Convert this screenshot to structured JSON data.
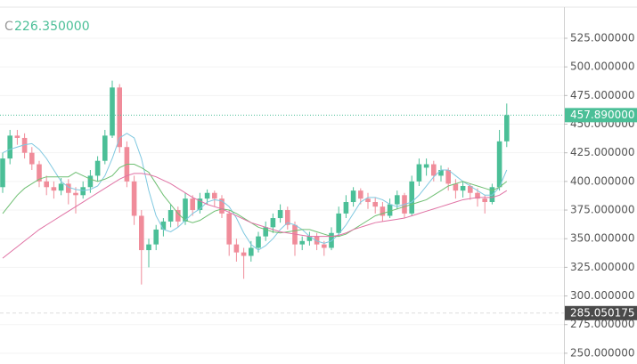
{
  "chart_data": {
    "type": "candlestick",
    "header": {
      "label": "C",
      "value": "226.350000"
    },
    "ylim": [
      240.6,
      558.4
    ],
    "yticks": [
      {
        "value": 250,
        "label": "250.000000"
      },
      {
        "value": 275,
        "label": "275.000000"
      },
      {
        "value": 300,
        "label": "300.000000"
      },
      {
        "value": 325,
        "label": "325.000000"
      },
      {
        "value": 350,
        "label": "350.000000"
      },
      {
        "value": 375,
        "label": "375.000000"
      },
      {
        "value": 400,
        "label": "400.000000"
      },
      {
        "value": 425,
        "label": "425.000000"
      },
      {
        "value": 450,
        "label": "450.000000"
      },
      {
        "value": 475,
        "label": "475.000000"
      },
      {
        "value": 500,
        "label": "500.000000"
      },
      {
        "value": 525,
        "label": "525.000000"
      }
    ],
    "last_price": {
      "value": 457.89,
      "label": "457.890000",
      "color": "#4bbf97"
    },
    "marker_line": {
      "value": 285.050175,
      "label": "285.050175",
      "color": "#4a4a4a"
    },
    "up_color": "#4bbf97",
    "down_color": "#f08c9a",
    "ohlc": [
      [
        395,
        425,
        390,
        420
      ],
      [
        420,
        445,
        415,
        440
      ],
      [
        440,
        445,
        432,
        438
      ],
      [
        438,
        442,
        420,
        425
      ],
      [
        425,
        430,
        410,
        415
      ],
      [
        415,
        418,
        395,
        400
      ],
      [
        400,
        405,
        388,
        395
      ],
      [
        395,
        400,
        385,
        392
      ],
      [
        392,
        403,
        388,
        398
      ],
      [
        398,
        402,
        380,
        390
      ],
      [
        390,
        395,
        372,
        388
      ],
      [
        388,
        400,
        385,
        395
      ],
      [
        395,
        410,
        390,
        405
      ],
      [
        405,
        422,
        400,
        418
      ],
      [
        418,
        445,
        415,
        440
      ],
      [
        440,
        488,
        438,
        482
      ],
      [
        482,
        485,
        425,
        430
      ],
      [
        430,
        435,
        395,
        400
      ],
      [
        400,
        405,
        362,
        370
      ],
      [
        370,
        375,
        310,
        340
      ],
      [
        340,
        350,
        325,
        345
      ],
      [
        345,
        362,
        340,
        358
      ],
      [
        358,
        368,
        352,
        365
      ],
      [
        365,
        380,
        360,
        375
      ],
      [
        375,
        378,
        360,
        365
      ],
      [
        365,
        390,
        362,
        385
      ],
      [
        385,
        388,
        370,
        375
      ],
      [
        375,
        390,
        372,
        385
      ],
      [
        385,
        393,
        380,
        390
      ],
      [
        390,
        392,
        378,
        385
      ],
      [
        385,
        388,
        368,
        372
      ],
      [
        372,
        375,
        335,
        345
      ],
      [
        345,
        350,
        330,
        338
      ],
      [
        338,
        342,
        315,
        335
      ],
      [
        335,
        348,
        330,
        342
      ],
      [
        342,
        356,
        338,
        352
      ],
      [
        352,
        365,
        348,
        360
      ],
      [
        360,
        372,
        355,
        368
      ],
      [
        368,
        380,
        364,
        375
      ],
      [
        375,
        378,
        358,
        362
      ],
      [
        362,
        365,
        335,
        345
      ],
      [
        345,
        352,
        340,
        348
      ],
      [
        348,
        356,
        344,
        352
      ],
      [
        352,
        355,
        340,
        345
      ],
      [
        345,
        348,
        335,
        342
      ],
      [
        342,
        360,
        340,
        355
      ],
      [
        355,
        378,
        352,
        372
      ],
      [
        372,
        388,
        368,
        382
      ],
      [
        382,
        395,
        378,
        392
      ],
      [
        392,
        394,
        380,
        385
      ],
      [
        385,
        390,
        376,
        382
      ],
      [
        382,
        386,
        372,
        378
      ],
      [
        378,
        382,
        365,
        370
      ],
      [
        370,
        385,
        368,
        380
      ],
      [
        380,
        392,
        376,
        388
      ],
      [
        388,
        390,
        368,
        372
      ],
      [
        372,
        405,
        370,
        400
      ],
      [
        400,
        420,
        396,
        415
      ],
      [
        412,
        420,
        405,
        415
      ],
      [
        415,
        418,
        400,
        405
      ],
      [
        405,
        414,
        400,
        410
      ],
      [
        410,
        412,
        392,
        398
      ],
      [
        398,
        402,
        385,
        392
      ],
      [
        392,
        400,
        386,
        396
      ],
      [
        396,
        398,
        384,
        390
      ],
      [
        390,
        394,
        378,
        385
      ],
      [
        385,
        388,
        372,
        382
      ],
      [
        382,
        398,
        380,
        395
      ],
      [
        395,
        445,
        392,
        435
      ],
      [
        435,
        468,
        430,
        457.89
      ]
    ],
    "series": [
      {
        "color": "#7fc8e0",
        "values": [
          425,
          428,
          430,
          432,
          433,
          428,
          420,
          410,
          400,
          395,
          393,
          392,
          393,
          396,
          405,
          420,
          438,
          442,
          438,
          420,
          392,
          370,
          358,
          356,
          360,
          366,
          372,
          376,
          382,
          384,
          383,
          378,
          368,
          355,
          345,
          340,
          344,
          350,
          358,
          364,
          362,
          358,
          352,
          348,
          346,
          348,
          354,
          362,
          372,
          382,
          386,
          386,
          384,
          380,
          378,
          380,
          382,
          388,
          396,
          404,
          410,
          410,
          405,
          400,
          396,
          392,
          388,
          388,
          395,
          410
        ]
      },
      {
        "color": "#6fbf73",
        "values": [
          372,
          380,
          388,
          394,
          398,
          402,
          404,
          404,
          404,
          404,
          408,
          405,
          402,
          400,
          402,
          405,
          412,
          415,
          415,
          412,
          408,
          398,
          388,
          380,
          372,
          366,
          364,
          366,
          370,
          374,
          376,
          375,
          372,
          368,
          364,
          360,
          358,
          356,
          355,
          356,
          357,
          358,
          358,
          356,
          354,
          352,
          352,
          354,
          358,
          362,
          366,
          370,
          372,
          374,
          376,
          378,
          380,
          382,
          384,
          388,
          392,
          396,
          398,
          400,
          398,
          396,
          394,
          392,
          395,
          400
        ]
      },
      {
        "color": "#e072a4",
        "values": [
          333,
          338,
          343,
          348,
          353,
          358,
          362,
          366,
          370,
          374,
          378,
          382,
          386,
          390,
          394,
          398,
          402,
          405,
          407,
          407,
          406,
          404,
          401,
          398,
          394,
          390,
          386,
          383,
          380,
          378,
          376,
          373,
          370,
          367,
          364,
          362,
          360,
          358,
          356,
          355,
          354,
          353,
          352,
          352,
          352,
          352,
          353,
          355,
          358,
          360,
          362,
          364,
          365,
          366,
          367,
          368,
          370,
          372,
          374,
          376,
          378,
          380,
          382,
          384,
          385,
          386,
          386,
          386,
          388,
          392
        ]
      }
    ]
  }
}
